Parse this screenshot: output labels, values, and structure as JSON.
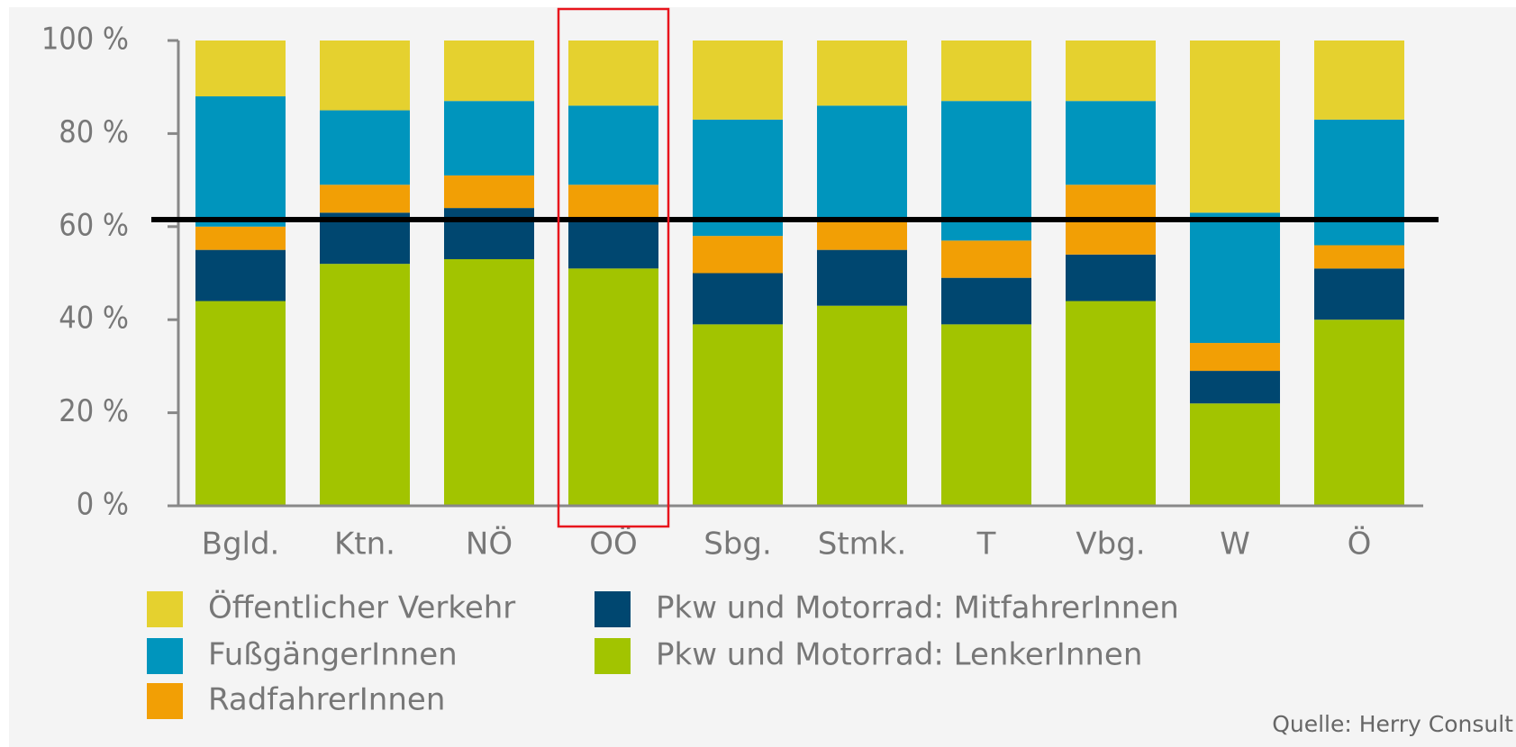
{
  "chart_data": {
    "type": "stacked_bar",
    "categories": [
      "Bgld.",
      "Ktn.",
      "NÖ",
      "OÖ",
      "Sbg.",
      "Stmk.",
      "T",
      "Vbg.",
      "W",
      "Ö"
    ],
    "series": [
      {
        "name": "Pkw und Motorrad: LenkerInnen",
        "color": "#a2c400",
        "values": [
          44,
          52,
          53,
          51,
          39,
          43,
          39,
          44,
          22,
          40
        ]
      },
      {
        "name": "Pkw und Motorrad: MitfahrerInnen",
        "color": "#004770",
        "values": [
          11,
          11,
          11,
          11,
          11,
          12,
          10,
          10,
          7,
          11
        ]
      },
      {
        "name": "RadfahrerInnen",
        "color": "#f29f05",
        "values": [
          5,
          6,
          7,
          7,
          8,
          6,
          8,
          15,
          6,
          5
        ]
      },
      {
        "name": "FußgängerInnen",
        "color": "#0095bd",
        "values": [
          28,
          16,
          16,
          17,
          25,
          25,
          30,
          18,
          28,
          27
        ]
      },
      {
        "name": "Öffentlicher Verkehr",
        "color": "#e5d12f",
        "values": [
          12,
          15,
          13,
          14,
          17,
          14,
          13,
          13,
          37,
          17
        ]
      }
    ],
    "ylim": [
      0,
      100
    ],
    "yticks": [
      {
        "value": 0,
        "label": "0 %"
      },
      {
        "value": 20,
        "label": "20 %"
      },
      {
        "value": 40,
        "label": "40 %"
      },
      {
        "value": 60,
        "label": "60 %"
      },
      {
        "value": 80,
        "label": "80 %"
      },
      {
        "value": 100,
        "label": "100 %"
      }
    ],
    "reference_line": 61.5,
    "highlight_category": 3,
    "source": "Quelle: Herry Consult"
  }
}
